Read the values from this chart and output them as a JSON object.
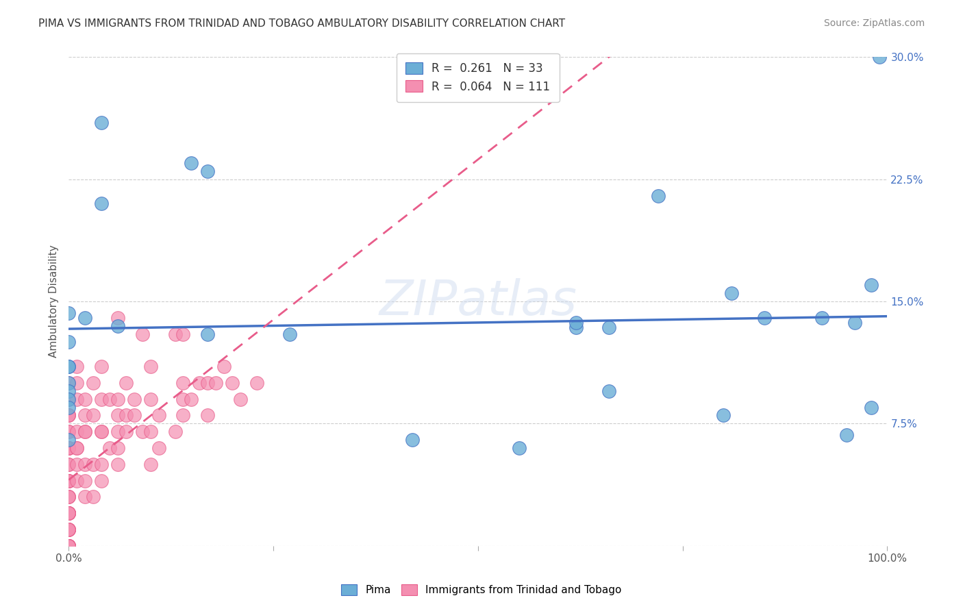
{
  "title": "PIMA VS IMMIGRANTS FROM TRINIDAD AND TOBAGO AMBULATORY DISABILITY CORRELATION CHART",
  "source": "Source: ZipAtlas.com",
  "xlabel": "",
  "ylabel": "Ambulatory Disability",
  "xlim": [
    0,
    1.0
  ],
  "ylim": [
    0,
    0.3
  ],
  "xticks": [
    0.0,
    0.25,
    0.5,
    0.75,
    1.0
  ],
  "xticklabels": [
    "0.0%",
    "",
    "",
    "",
    "100.0%"
  ],
  "yticks": [
    0.0,
    0.075,
    0.15,
    0.225,
    0.3
  ],
  "yticklabels": [
    "",
    "7.5%",
    "15.0%",
    "22.5%",
    "30.0%"
  ],
  "legend_entries": [
    {
      "label": "R =  0.261   N = 33",
      "color": "#aec6e8",
      "text_color": "#4472c4"
    },
    {
      "label": "R =  0.064   N = 111",
      "color": "#f4b8c8",
      "text_color": "#e85c8a"
    }
  ],
  "watermark": "ZIPatlas",
  "pima_color": "#6baed6",
  "pima_edge": "#4472c4",
  "immigrant_color": "#f48fb1",
  "immigrant_edge": "#e85c8a",
  "pima_R": 0.261,
  "pima_N": 33,
  "immigrant_R": 0.064,
  "immigrant_N": 111,
  "pima_line_color": "#4472c4",
  "immigrant_line_color": "#e85c8a",
  "grid_color": "#cccccc",
  "background_color": "#ffffff",
  "pima_points_x": [
    0.02,
    0.04,
    0.04,
    0.06,
    0.0,
    0.0,
    0.0,
    0.0,
    0.0,
    0.0,
    0.0,
    0.0,
    0.0,
    0.27,
    0.15,
    0.17,
    0.17,
    0.42,
    0.55,
    0.62,
    0.62,
    0.66,
    0.66,
    0.72,
    0.8,
    0.81,
    0.85,
    0.92,
    0.95,
    0.96,
    0.98,
    0.98,
    0.99
  ],
  "pima_points_y": [
    0.14,
    0.26,
    0.21,
    0.135,
    0.143,
    0.125,
    0.11,
    0.11,
    0.1,
    0.095,
    0.09,
    0.085,
    0.065,
    0.13,
    0.235,
    0.13,
    0.23,
    0.065,
    0.06,
    0.134,
    0.137,
    0.095,
    0.134,
    0.215,
    0.08,
    0.155,
    0.14,
    0.14,
    0.068,
    0.137,
    0.085,
    0.16,
    0.3
  ],
  "immigrant_points_x": [
    0.0,
    0.0,
    0.0,
    0.0,
    0.0,
    0.0,
    0.0,
    0.0,
    0.0,
    0.0,
    0.0,
    0.0,
    0.0,
    0.0,
    0.0,
    0.0,
    0.0,
    0.0,
    0.0,
    0.0,
    0.0,
    0.0,
    0.0,
    0.0,
    0.0,
    0.0,
    0.0,
    0.0,
    0.0,
    0.0,
    0.0,
    0.0,
    0.0,
    0.0,
    0.0,
    0.0,
    0.0,
    0.0,
    0.0,
    0.0,
    0.0,
    0.0,
    0.0,
    0.0,
    0.0,
    0.0,
    0.0,
    0.0,
    0.0,
    0.0,
    0.01,
    0.01,
    0.01,
    0.01,
    0.01,
    0.01,
    0.01,
    0.01,
    0.02,
    0.02,
    0.02,
    0.02,
    0.02,
    0.02,
    0.02,
    0.03,
    0.03,
    0.03,
    0.03,
    0.04,
    0.04,
    0.04,
    0.04,
    0.04,
    0.04,
    0.05,
    0.05,
    0.06,
    0.06,
    0.06,
    0.06,
    0.06,
    0.06,
    0.07,
    0.07,
    0.07,
    0.08,
    0.08,
    0.09,
    0.09,
    0.1,
    0.1,
    0.1,
    0.1,
    0.11,
    0.11,
    0.13,
    0.13,
    0.14,
    0.14,
    0.14,
    0.14,
    0.15,
    0.16,
    0.17,
    0.17,
    0.18,
    0.19,
    0.2,
    0.21,
    0.23
  ],
  "immigrant_points_y": [
    0.0,
    0.0,
    0.0,
    0.0,
    0.0,
    0.0,
    0.0,
    0.0,
    0.0,
    0.0,
    0.0,
    0.0,
    0.0,
    0.0,
    0.0,
    0.01,
    0.01,
    0.01,
    0.01,
    0.01,
    0.01,
    0.02,
    0.02,
    0.02,
    0.02,
    0.02,
    0.02,
    0.02,
    0.02,
    0.03,
    0.03,
    0.03,
    0.04,
    0.04,
    0.04,
    0.04,
    0.05,
    0.05,
    0.06,
    0.06,
    0.06,
    0.06,
    0.06,
    0.07,
    0.07,
    0.08,
    0.08,
    0.08,
    0.09,
    0.1,
    0.04,
    0.05,
    0.06,
    0.06,
    0.07,
    0.09,
    0.1,
    0.11,
    0.03,
    0.04,
    0.05,
    0.07,
    0.07,
    0.08,
    0.09,
    0.03,
    0.05,
    0.08,
    0.1,
    0.04,
    0.05,
    0.07,
    0.07,
    0.09,
    0.11,
    0.06,
    0.09,
    0.05,
    0.06,
    0.07,
    0.08,
    0.09,
    0.14,
    0.07,
    0.08,
    0.1,
    0.08,
    0.09,
    0.07,
    0.13,
    0.05,
    0.07,
    0.09,
    0.11,
    0.06,
    0.08,
    0.07,
    0.13,
    0.08,
    0.09,
    0.1,
    0.13,
    0.09,
    0.1,
    0.08,
    0.1,
    0.1,
    0.11,
    0.1,
    0.09,
    0.1
  ]
}
